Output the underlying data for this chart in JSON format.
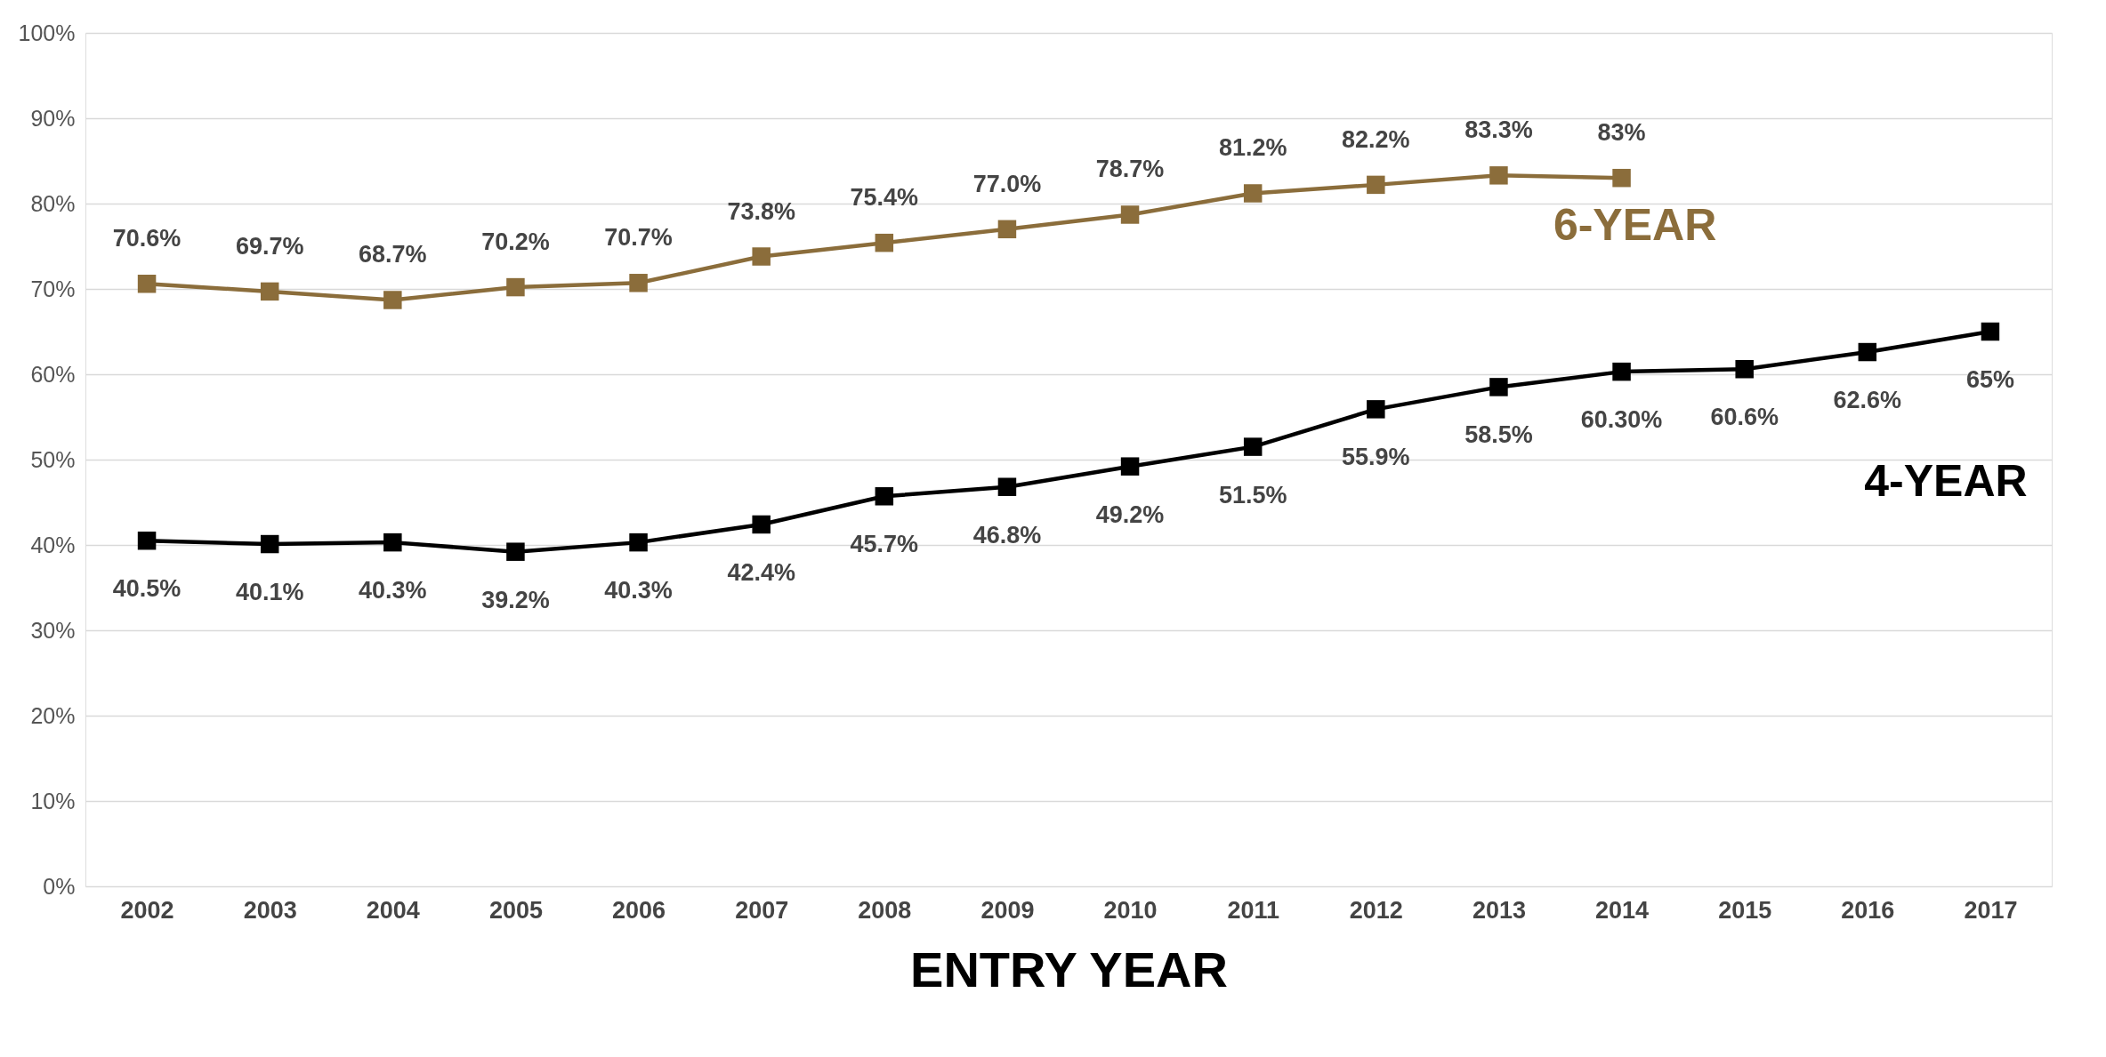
{
  "chart_data": {
    "type": "line",
    "xlabel": "ENTRY YEAR",
    "categories": [
      "2002",
      "2003",
      "2004",
      "2005",
      "2006",
      "2007",
      "2008",
      "2009",
      "2010",
      "2011",
      "2012",
      "2013",
      "2014",
      "2015",
      "2016",
      "2017"
    ],
    "series": [
      {
        "name": "6-YEAR",
        "color": "#8b6d3b",
        "values": [
          70.6,
          69.7,
          68.7,
          70.2,
          70.7,
          73.8,
          75.4,
          77.0,
          78.7,
          81.2,
          82.2,
          83.3,
          83,
          null,
          null,
          null
        ],
        "value_labels": [
          "70.6%",
          "69.7%",
          "68.7%",
          "70.2%",
          "70.7%",
          "73.8%",
          "75.4%",
          "77.0%",
          "78.7%",
          "81.2%",
          "82.2%",
          "83.3%",
          "83%",
          null,
          null,
          null
        ]
      },
      {
        "name": "4-YEAR",
        "color": "#000000",
        "values": [
          40.5,
          40.1,
          40.3,
          39.2,
          40.3,
          42.4,
          45.7,
          46.8,
          49.2,
          51.5,
          55.9,
          58.5,
          60.3,
          60.6,
          62.6,
          65
        ],
        "value_labels": [
          "40.5%",
          "40.1%",
          "40.3%",
          "39.2%",
          "40.3%",
          "42.4%",
          "45.7%",
          "46.8%",
          "49.2%",
          "51.5%",
          "55.9%",
          "58.5%",
          "60.30%",
          "60.6%",
          "62.6%",
          "65%"
        ]
      }
    ],
    "ylim": [
      0,
      100
    ],
    "yticks": [
      {
        "value": 0,
        "label": "0%"
      },
      {
        "value": 10,
        "label": "10%"
      },
      {
        "value": 20,
        "label": "20%"
      },
      {
        "value": 30,
        "label": "30%"
      },
      {
        "value": 40,
        "label": "40%"
      },
      {
        "value": 50,
        "label": "50%"
      },
      {
        "value": 60,
        "label": "60%"
      },
      {
        "value": 70,
        "label": "70%"
      },
      {
        "value": 80,
        "label": "80%"
      },
      {
        "value": 90,
        "label": "90%"
      },
      {
        "value": 100,
        "label": "100%"
      }
    ],
    "grid": "y",
    "marker": "square",
    "line_style": "solid"
  }
}
